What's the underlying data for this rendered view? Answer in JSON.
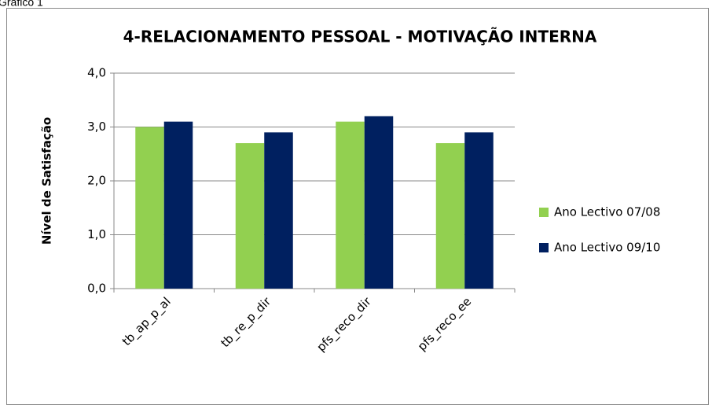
{
  "caption": "Gráfico 1",
  "chart_data": {
    "type": "bar",
    "title": "4-RELACIONAMENTO PESSOAL - MOTIVAÇÃO INTERNA",
    "y_label": "Nível de Satisfação",
    "categories": [
      "tb_ap_p_al",
      "tb_re_p_dir",
      "pfs_reco_dir",
      "pfs_reco_ee"
    ],
    "series": [
      {
        "name": "Ano Lectivo 07/08",
        "color": "#92d050",
        "values": [
          3.0,
          2.7,
          3.1,
          2.7
        ]
      },
      {
        "name": "Ano Lectivo 09/10",
        "color": "#002060",
        "values": [
          3.1,
          2.9,
          3.2,
          2.9
        ]
      }
    ],
    "ylim": [
      0,
      4
    ],
    "yticks": [
      {
        "value": 0,
        "label": "0,0"
      },
      {
        "value": 1,
        "label": "1,0"
      },
      {
        "value": 2,
        "label": "2,0"
      },
      {
        "value": 3,
        "label": "3,0"
      },
      {
        "value": 4,
        "label": "4,0"
      }
    ],
    "grid": true,
    "legend": "right"
  }
}
